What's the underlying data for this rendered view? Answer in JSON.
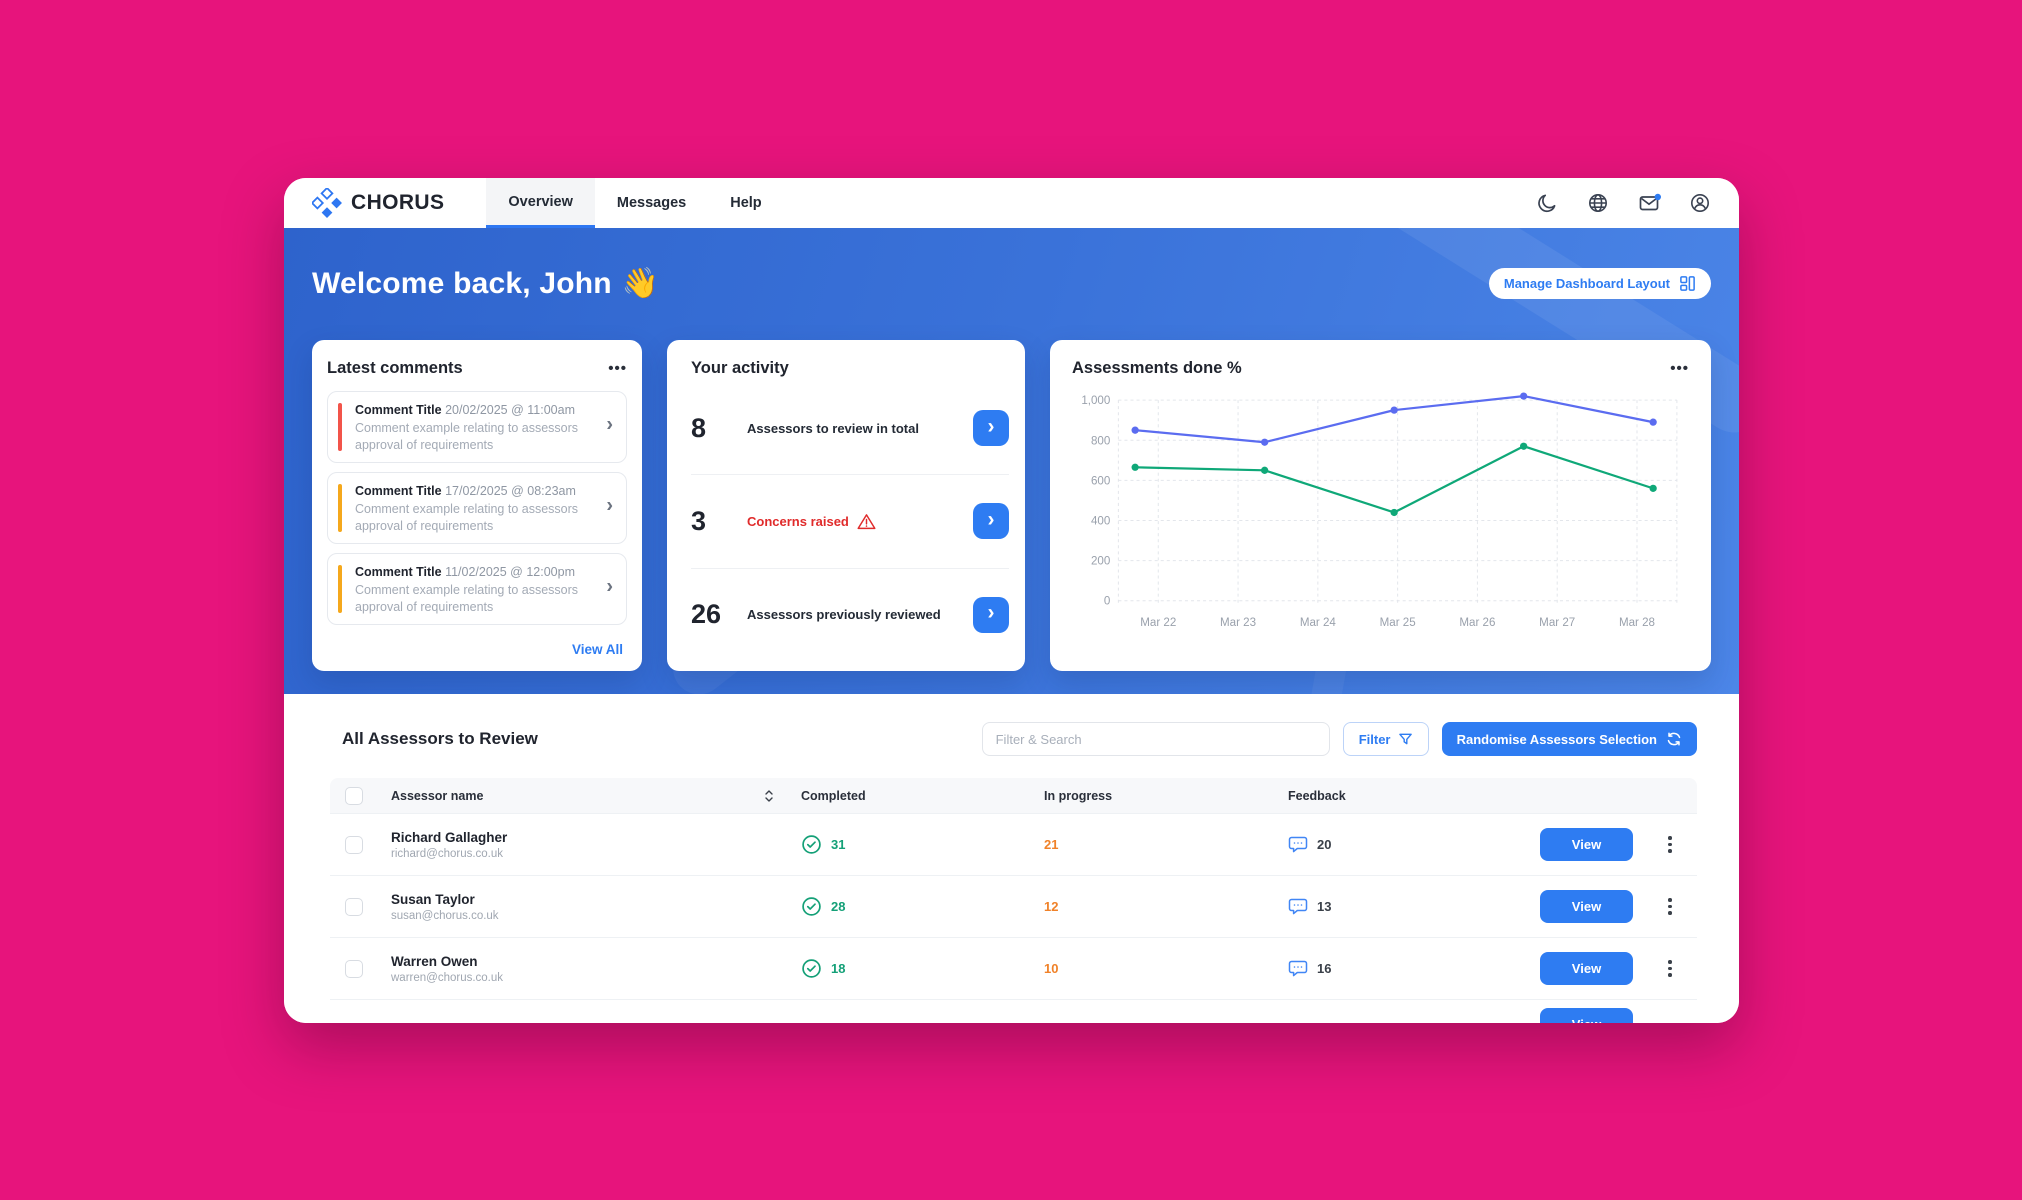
{
  "header": {
    "brand": "CHORUS",
    "nav": [
      {
        "label": "Overview",
        "active": true
      },
      {
        "label": "Messages",
        "active": false
      },
      {
        "label": "Help",
        "active": false
      }
    ]
  },
  "hero": {
    "greeting": "Welcome back, John",
    "wave": "👋",
    "manage_button": "Manage Dashboard Layout"
  },
  "comments": {
    "title": "Latest comments",
    "view_all": "View All",
    "items": [
      {
        "title": "Comment Title",
        "timestamp": "20/02/2025 @ 11:00am",
        "body": "Comment example relating to assessors approval of requirements",
        "accent": "#F2544A"
      },
      {
        "title": "Comment Title",
        "timestamp": "17/02/2025 @ 08:23am",
        "body": "Comment example relating to assessors approval of requirements",
        "accent": "#F5A81C"
      },
      {
        "title": "Comment Title",
        "timestamp": "11/02/2025 @ 12:00pm",
        "body": "Comment example relating to assessors approval of requirements",
        "accent": "#F5A81C"
      }
    ]
  },
  "activity": {
    "title": "Your activity",
    "items": [
      {
        "count": "8",
        "label": "Assessors to review in total",
        "alert": false
      },
      {
        "count": "3",
        "label": "Concerns raised",
        "alert": true
      },
      {
        "count": "26",
        "label": "Assessors previously reviewed",
        "alert": false
      }
    ]
  },
  "chart_card": {
    "title": "Assessments done %"
  },
  "chart_data": {
    "type": "line",
    "title": "Assessments done %",
    "x_tick_labels": [
      "Mar 22",
      "Mar 23",
      "Mar 24",
      "Mar 25",
      "Mar 26",
      "Mar 27",
      "Mar 28"
    ],
    "ylim": [
      0,
      1000
    ],
    "yticks": [
      0,
      200,
      400,
      600,
      800,
      1000
    ],
    "grid": "dashed",
    "legend_position": "none",
    "series": [
      {
        "name": "series-blue",
        "color": "#5B6CF0",
        "values": [
          850,
          790,
          950,
          1020,
          890
        ]
      },
      {
        "name": "series-green",
        "color": "#0FA878",
        "values": [
          665,
          650,
          440,
          770,
          560
        ]
      }
    ]
  },
  "table": {
    "title": "All Assessors to Review",
    "search_placeholder": "Filter & Search",
    "filter_button": "Filter",
    "randomise_button": "Randomise Assessors Selection",
    "columns": [
      "Assessor name",
      "Completed",
      "In progress",
      "Feedback"
    ],
    "view_label": "View",
    "rows": [
      {
        "name": "Richard Gallagher",
        "email": "richard@chorus.co.uk",
        "completed": "31",
        "in_progress": "21",
        "feedback": "20"
      },
      {
        "name": "Susan Taylor",
        "email": "susan@chorus.co.uk",
        "completed": "28",
        "in_progress": "12",
        "feedback": "13"
      },
      {
        "name": "Warren Owen",
        "email": "warren@chorus.co.uk",
        "completed": "18",
        "in_progress": "10",
        "feedback": "16"
      }
    ]
  },
  "icons": {
    "ellipsis": "•••",
    "chevron_right": "›"
  },
  "colors": {
    "background_pink": "#E7147C",
    "accent_blue": "#2E7CF2",
    "hero_gradient_start": "#2E63CC",
    "hero_gradient_end": "#4C86E8",
    "comment_red": "#F2544A",
    "comment_amber": "#F5A81C",
    "chart_blue": "#5B6CF0",
    "chart_green": "#0FA878",
    "completed_green": "#14A077",
    "in_progress_orange": "#F08229",
    "concern_red": "#E02B2B",
    "grid_line": "#E3E6EB",
    "axis_text": "#9AA1AC"
  }
}
